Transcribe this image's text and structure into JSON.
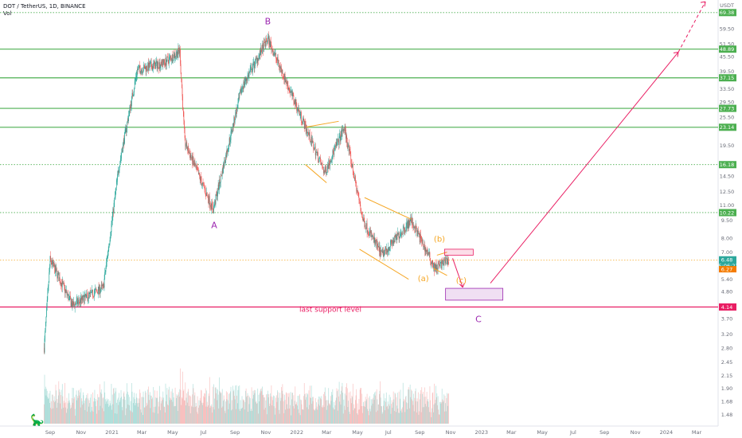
{
  "header": {
    "symbol": "DOT / TetherUS, 1D, BINANCE",
    "volume_label": "Vol"
  },
  "axis_currency": "USDT",
  "colors": {
    "up": "#26a69a",
    "down": "#ef5350",
    "level_green": "#4caf50",
    "support": "#e91e63",
    "channel": "#f5a623",
    "wave_label": "#9c27b0",
    "forecast": "#e91e63",
    "price_tag": "#2ca79c",
    "price_tag2": "#f57c00"
  },
  "chart_data": {
    "type": "candlestick",
    "title": "DOT / TetherUS, 1D, BINANCE",
    "y_scale": "log",
    "y_ticks": [
      "71.80",
      "59.50",
      "51.50",
      "45.50",
      "39.50",
      "33.50",
      "29.50",
      "25.50",
      "19.50",
      "14.50",
      "12.50",
      "11.00",
      "9.50",
      "8.00",
      "7.00",
      "5.40",
      "4.80",
      "3.70",
      "3.20",
      "2.80",
      "2.45",
      "2.15",
      "1.90",
      "1.68",
      "1.48"
    ],
    "x_ticks": [
      "Sep",
      "Nov",
      "2021",
      "Mar",
      "May",
      "Jul",
      "Sep",
      "Nov",
      "2022",
      "Mar",
      "May",
      "Jul",
      "Sep",
      "Nov",
      "2023",
      "Mar",
      "May",
      "Jul",
      "Sep",
      "Nov",
      "2024",
      "Mar"
    ],
    "last_price": "6.48",
    "countdown": "05:06:22",
    "current_marker": "6.27",
    "horizontal_levels": [
      {
        "value": "69.38",
        "style": "dotted",
        "color": "#4caf50"
      },
      {
        "value": "48.89",
        "style": "solid",
        "color": "#4caf50"
      },
      {
        "value": "37.15",
        "style": "solid",
        "color": "#4caf50"
      },
      {
        "value": "27.73",
        "style": "solid",
        "color": "#4caf50"
      },
      {
        "value": "23.14",
        "style": "solid",
        "color": "#4caf50"
      },
      {
        "value": "16.18",
        "style": "dotted",
        "color": "#4caf50"
      },
      {
        "value": "10.22",
        "style": "dotted",
        "color": "#4caf50"
      },
      {
        "value": "4.14",
        "style": "solid",
        "color": "#e91e63"
      }
    ],
    "series_key_points": [
      {
        "date": "2020-08-20",
        "price": 2.8
      },
      {
        "date": "2020-09-01",
        "price": 6.5
      },
      {
        "date": "2020-10-15",
        "price": 4.2
      },
      {
        "date": "2020-12-15",
        "price": 5.0
      },
      {
        "date": "2021-01-15",
        "price": 16
      },
      {
        "date": "2021-02-20",
        "price": 40
      },
      {
        "date": "2021-04-15",
        "price": 43
      },
      {
        "date": "2021-05-15",
        "price": 48
      },
      {
        "date": "2021-05-25",
        "price": 20
      },
      {
        "date": "2021-07-20",
        "price": 10.5
      },
      {
        "date": "2021-09-15",
        "price": 34
      },
      {
        "date": "2021-11-05",
        "price": 54
      },
      {
        "date": "2022-01-05",
        "price": 27
      },
      {
        "date": "2022-02-25",
        "price": 15
      },
      {
        "date": "2022-04-05",
        "price": 23
      },
      {
        "date": "2022-05-12",
        "price": 9.5
      },
      {
        "date": "2022-06-18",
        "price": 6.8
      },
      {
        "date": "2022-08-15",
        "price": 9.5
      },
      {
        "date": "2022-10-01",
        "price": 6.0
      },
      {
        "date": "2022-10-28",
        "price": 6.48
      }
    ],
    "annotations": [
      "A",
      "B",
      "C",
      "(a)",
      "(b)",
      "(c)",
      "last support level"
    ]
  }
}
